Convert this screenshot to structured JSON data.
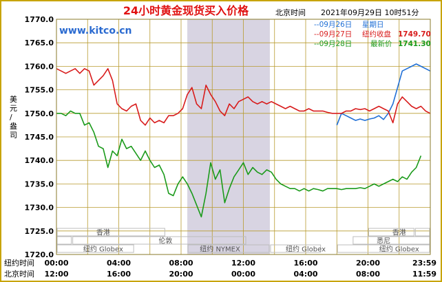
{
  "header": {
    "title": "24小时黄金现货买入价格",
    "beijing_time_label": "北京时间",
    "timestamp": "2021年09月29日 10时51分",
    "site": "www.kitco.cn"
  },
  "legend": [
    {
      "date": "--09月26日",
      "label": "星期日",
      "value": "",
      "color": "#1f6fd6"
    },
    {
      "date": "--09月27日",
      "label": "纽约收盘",
      "value": "1749.70",
      "color": "#d81b1b"
    },
    {
      "date": "--09月28日",
      "label": "最新价",
      "value": "1741.30",
      "color": "#1a9a1a"
    }
  ],
  "ylabel": "美元/盎司",
  "axis_rows": {
    "ny_label": "纽约时间",
    "bj_label": "北京时间",
    "ny_ticks": [
      "00:00",
      "04:00",
      "08:00",
      "12:00",
      "16:00",
      "20:00",
      "23:59"
    ],
    "bj_ticks": [
      "12:00",
      "16:00",
      "20:00",
      "00:00",
      "04:00",
      "08:00",
      "11:59"
    ]
  },
  "markets": {
    "row1": [
      "香港",
      "香港"
    ],
    "row2": [
      "伦敦",
      "悉尼"
    ],
    "row3": [
      "纽约 Globex",
      "纽约 NYMEX",
      "纽约 Globex",
      "纽约 Globex"
    ]
  },
  "colors": {
    "frame": "#c8a400",
    "grid": "#b89a2e",
    "shade": "#d8d4e2",
    "title": "#e01010",
    "site": "#2a6ad0",
    "axis_text": "#000000",
    "market_box": "#bcbcbc",
    "market_text": "#555555"
  },
  "chart_data": {
    "type": "line",
    "title": "24小时黄金现货买入价格",
    "ylabel": "美元/盎司",
    "ylim": [
      1720,
      1770
    ],
    "yticks": [
      "1720.0",
      "1725.0",
      "1730.0",
      "1735.0",
      "1740.0",
      "1745.0",
      "1750.0",
      "1755.0",
      "1760.0",
      "1765.0",
      "1770.0"
    ],
    "x_unit": "New York time (hours)",
    "xlim": [
      0,
      24
    ],
    "shaded_x": [
      8.4,
      13.7
    ],
    "grid": true,
    "series": [
      {
        "name": "--09月26日",
        "color": "#1f6fd6",
        "x": [
          18.0,
          18.3,
          18.6,
          18.9,
          19.2,
          19.5,
          19.8,
          20.1,
          20.4,
          20.7,
          21.0,
          21.3,
          21.6,
          21.9,
          22.2,
          22.5,
          22.8,
          23.1,
          23.4,
          23.7,
          23.99
        ],
        "y": [
          1747.5,
          1750.0,
          1749.5,
          1749.0,
          1748.5,
          1748.8,
          1748.5,
          1748.8,
          1749.0,
          1749.5,
          1748.7,
          1750.0,
          1752.0,
          1755.5,
          1759.0,
          1759.5,
          1760.0,
          1760.5,
          1760.0,
          1759.5,
          1759.0
        ]
      },
      {
        "name": "--09月27日",
        "color": "#d81b1b",
        "x": [
          0.0,
          0.3,
          0.6,
          0.9,
          1.2,
          1.5,
          1.8,
          2.1,
          2.4,
          2.7,
          3.0,
          3.3,
          3.6,
          3.9,
          4.2,
          4.5,
          4.8,
          5.1,
          5.4,
          5.7,
          6.0,
          6.3,
          6.6,
          6.9,
          7.2,
          7.5,
          7.8,
          8.1,
          8.4,
          8.7,
          9.0,
          9.3,
          9.6,
          9.9,
          10.2,
          10.5,
          10.8,
          11.1,
          11.4,
          11.7,
          12.0,
          12.3,
          12.6,
          12.9,
          13.2,
          13.5,
          13.8,
          14.1,
          14.4,
          14.7,
          15.0,
          15.3,
          15.6,
          15.9,
          16.2,
          16.5,
          16.8,
          17.1,
          17.4,
          17.7,
          18.0,
          18.3,
          18.6,
          18.9,
          19.2,
          19.5,
          19.8,
          20.1,
          20.4,
          20.7,
          21.0,
          21.3,
          21.6,
          21.9,
          22.2,
          22.5,
          22.8,
          23.1,
          23.4,
          23.7,
          23.99
        ],
        "y": [
          1759.5,
          1759.0,
          1758.5,
          1759.0,
          1759.5,
          1758.5,
          1759.5,
          1759.0,
          1756.0,
          1757.0,
          1758.0,
          1759.5,
          1757.0,
          1752.0,
          1751.0,
          1750.5,
          1751.5,
          1752.0,
          1748.5,
          1747.5,
          1749.0,
          1748.0,
          1748.5,
          1748.0,
          1749.5,
          1749.5,
          1750.0,
          1751.0,
          1754.0,
          1755.5,
          1752.0,
          1751.0,
          1756.0,
          1754.0,
          1752.5,
          1750.5,
          1749.5,
          1752.0,
          1751.0,
          1752.5,
          1753.0,
          1753.5,
          1752.5,
          1752.0,
          1752.5,
          1752.0,
          1752.5,
          1752.0,
          1751.5,
          1751.0,
          1751.5,
          1751.0,
          1750.5,
          1750.5,
          1751.0,
          1750.5,
          1750.5,
          1750.5,
          1750.2,
          1750.0,
          1750.0,
          1750.0,
          1750.5,
          1750.5,
          1751.0,
          1750.8,
          1751.0,
          1750.5,
          1751.0,
          1751.5,
          1751.0,
          1750.5,
          1748.0,
          1752.0,
          1753.5,
          1752.5,
          1751.5,
          1751.0,
          1751.5,
          1750.5,
          1750.0
        ]
      },
      {
        "name": "--09月28日",
        "color": "#1a9a1a",
        "x": [
          0.0,
          0.3,
          0.6,
          0.9,
          1.2,
          1.5,
          1.8,
          2.1,
          2.4,
          2.7,
          3.0,
          3.3,
          3.6,
          3.9,
          4.2,
          4.5,
          4.8,
          5.1,
          5.4,
          5.7,
          6.0,
          6.3,
          6.6,
          6.9,
          7.2,
          7.5,
          7.8,
          8.1,
          8.4,
          8.7,
          9.0,
          9.3,
          9.6,
          9.9,
          10.2,
          10.5,
          10.8,
          11.1,
          11.4,
          11.7,
          12.0,
          12.3,
          12.6,
          12.9,
          13.2,
          13.5,
          13.8,
          14.1,
          14.4,
          14.7,
          15.0,
          15.3,
          15.6,
          15.9,
          16.2,
          16.5,
          16.8,
          17.1,
          17.4,
          17.7,
          18.0,
          18.3,
          18.6,
          18.9,
          19.2,
          19.5,
          19.8,
          20.1,
          20.4,
          20.7,
          21.0,
          21.3,
          21.6,
          21.9,
          22.2,
          22.5,
          22.8,
          23.1,
          23.4
        ],
        "y": [
          1750.0,
          1750.0,
          1749.5,
          1750.5,
          1750.0,
          1750.0,
          1747.5,
          1748.0,
          1746.0,
          1743.0,
          1742.5,
          1738.5,
          1742.0,
          1741.0,
          1744.5,
          1742.5,
          1743.0,
          1741.5,
          1740.0,
          1742.0,
          1740.0,
          1738.5,
          1739.0,
          1737.0,
          1733.0,
          1732.5,
          1735.0,
          1736.5,
          1735.0,
          1733.0,
          1730.5,
          1728.0,
          1733.0,
          1739.5,
          1736.0,
          1738.0,
          1731.0,
          1734.0,
          1736.5,
          1738.0,
          1739.5,
          1737.0,
          1738.5,
          1737.5,
          1737.0,
          1738.0,
          1737.5,
          1736.0,
          1735.0,
          1734.5,
          1734.0,
          1734.0,
          1733.5,
          1734.0,
          1733.5,
          1734.0,
          1733.8,
          1733.5,
          1734.0,
          1734.0,
          1734.0,
          1733.8,
          1734.0,
          1734.0,
          1734.0,
          1734.2,
          1734.0,
          1734.5,
          1735.0,
          1734.5,
          1735.0,
          1735.5,
          1736.0,
          1735.5,
          1736.5,
          1736.0,
          1737.5,
          1738.5,
          1741.0
        ]
      }
    ]
  }
}
